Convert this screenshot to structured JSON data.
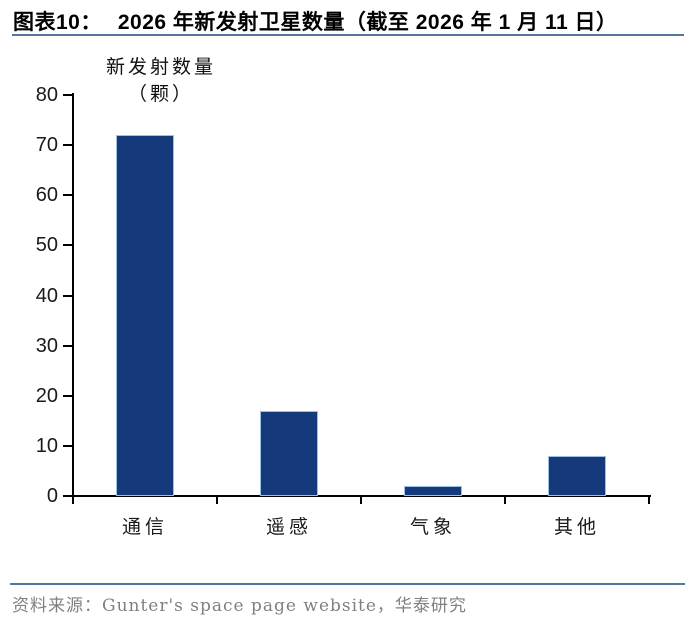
{
  "figure": {
    "label": "图表10：",
    "title": "2026 年新发射卫星数量（截至 2026 年 1 月 11 日）",
    "source": "资料来源：Gunter's space page website，华泰研究"
  },
  "chart_data": {
    "type": "bar",
    "title": "2026 年新发射卫星数量（截至 2026 年 1 月 11 日）",
    "categories": [
      "通信",
      "遥感",
      "气象",
      "其他"
    ],
    "values": [
      72,
      17,
      2,
      8
    ],
    "ylabel": "新发射数量",
    "ylabel_unit": "（颗）",
    "xlabel": "",
    "ylim": [
      0,
      80
    ],
    "ytick_step": 10,
    "grid": false,
    "legend": "none"
  },
  "colors": {
    "bar": "#143A7C",
    "bar_edge": "#9DC1E4",
    "rule": "#54779E",
    "axis": "#000000",
    "source_text": "#808080"
  }
}
